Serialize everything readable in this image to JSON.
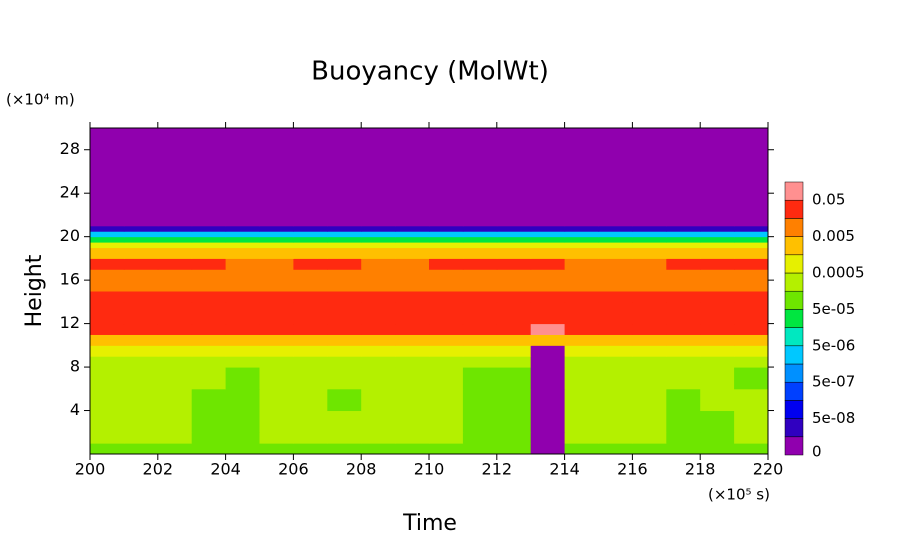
{
  "chart_data": {
    "type": "heatmap",
    "title": "Buoyancy (MolWt)",
    "x_label": "Time",
    "y_label": "Height",
    "x_unit": "(×10⁵ s)",
    "y_unit": "(×10⁴ m)",
    "xlim": [
      200,
      220
    ],
    "xticks": [
      200,
      202,
      204,
      206,
      208,
      210,
      212,
      214,
      216,
      218,
      220
    ],
    "ylim": [
      0,
      30
    ],
    "yticks": [
      4,
      8,
      12,
      16,
      20,
      24,
      28
    ],
    "x": [
      200,
      201,
      202,
      203,
      204,
      205,
      206,
      207,
      208,
      209,
      210,
      211,
      212,
      213,
      214,
      215,
      216,
      217,
      218,
      219,
      220
    ],
    "y": [
      0,
      1,
      2,
      4,
      6,
      8,
      9,
      10,
      11,
      12,
      14,
      15,
      16,
      17,
      18,
      19,
      19.5,
      20,
      20.5,
      21,
      30
    ],
    "z": [
      [
        7e-05,
        7e-05,
        7e-05,
        7e-05,
        7e-05,
        7e-05,
        7e-05,
        7e-05,
        7e-05,
        7e-05,
        7e-05,
        7e-05,
        7e-05,
        0,
        7e-05,
        7e-05,
        7e-05,
        7e-05,
        7e-05,
        7e-05
      ],
      [
        0.0003,
        0.0003,
        0.0003,
        7e-05,
        7e-05,
        0.0003,
        0.0003,
        0.0003,
        0.0003,
        0.0003,
        0.0003,
        7e-05,
        7e-05,
        0,
        0.0003,
        0.0003,
        0.0003,
        7e-05,
        7e-05,
        0.0003
      ],
      [
        0.0003,
        0.0003,
        0.0003,
        7e-05,
        7e-05,
        0.0003,
        0.0003,
        0.0003,
        0.0003,
        0.0003,
        0.0003,
        7e-05,
        7e-05,
        0,
        0.0003,
        0.0003,
        0.0003,
        7e-05,
        7e-05,
        0.0003
      ],
      [
        0.0003,
        0.0003,
        0.0003,
        7e-05,
        7e-05,
        0.0003,
        0.0003,
        7e-05,
        0.0003,
        0.0003,
        0.0003,
        7e-05,
        7e-05,
        0,
        0.0003,
        0.0003,
        0.0003,
        7e-05,
        0.0003,
        0.0003
      ],
      [
        0.0003,
        0.0003,
        0.0003,
        0.0003,
        7e-05,
        0.0003,
        0.0003,
        0.0003,
        0.0003,
        0.0003,
        0.0003,
        7e-05,
        7e-05,
        0,
        0.0003,
        0.0003,
        0.0003,
        0.0003,
        0.0003,
        7e-05
      ],
      [
        0.0003,
        0.0003,
        0.0003,
        0.0003,
        0.0003,
        0.0003,
        0.0003,
        0.0003,
        0.0003,
        0.0003,
        0.0003,
        0.0003,
        0.0003,
        0,
        0.0003,
        0.0003,
        0.0003,
        0.0003,
        0.0003,
        0.0003
      ],
      [
        0.0007,
        0.0007,
        0.0007,
        0.0007,
        0.0007,
        0.0007,
        0.0007,
        0.0007,
        0.0007,
        0.0007,
        0.0007,
        0.0007,
        0.0007,
        0,
        0.0007,
        0.0007,
        0.0007,
        0.0007,
        0.0007,
        0.0007
      ],
      [
        0.002,
        0.002,
        0.002,
        0.002,
        0.002,
        0.002,
        0.002,
        0.002,
        0.002,
        0.002,
        0.002,
        0.002,
        0.002,
        0.002,
        0.002,
        0.002,
        0.002,
        0.002,
        0.002,
        0.002
      ],
      [
        0.02,
        0.02,
        0.02,
        0.02,
        0.02,
        0.02,
        0.02,
        0.02,
        0.02,
        0.02,
        0.02,
        0.02,
        0.02,
        0.07,
        0.02,
        0.02,
        0.02,
        0.02,
        0.02,
        0.02
      ],
      [
        0.02,
        0.02,
        0.02,
        0.02,
        0.02,
        0.02,
        0.02,
        0.02,
        0.02,
        0.02,
        0.02,
        0.02,
        0.02,
        0.02,
        0.02,
        0.02,
        0.02,
        0.02,
        0.02,
        0.02
      ],
      [
        0.02,
        0.02,
        0.02,
        0.02,
        0.02,
        0.02,
        0.02,
        0.02,
        0.02,
        0.02,
        0.02,
        0.02,
        0.02,
        0.02,
        0.02,
        0.02,
        0.02,
        0.02,
        0.02,
        0.02
      ],
      [
        0.007,
        0.007,
        0.007,
        0.007,
        0.007,
        0.007,
        0.007,
        0.007,
        0.007,
        0.007,
        0.007,
        0.007,
        0.007,
        0.007,
        0.007,
        0.007,
        0.007,
        0.007,
        0.007,
        0.007
      ],
      [
        0.007,
        0.007,
        0.007,
        0.007,
        0.007,
        0.007,
        0.007,
        0.007,
        0.007,
        0.007,
        0.007,
        0.007,
        0.007,
        0.007,
        0.007,
        0.007,
        0.007,
        0.007,
        0.007,
        0.007
      ],
      [
        0.02,
        0.02,
        0.02,
        0.02,
        0.007,
        0.007,
        0.02,
        0.02,
        0.007,
        0.007,
        0.02,
        0.02,
        0.02,
        0.02,
        0.007,
        0.007,
        0.007,
        0.02,
        0.02,
        0.02
      ],
      [
        0.002,
        0.002,
        0.002,
        0.002,
        0.002,
        0.002,
        0.002,
        0.002,
        0.002,
        0.002,
        0.002,
        0.002,
        0.002,
        0.002,
        0.002,
        0.002,
        0.002,
        0.002,
        0.002,
        0.002
      ],
      [
        0.0007,
        0.0007,
        0.0007,
        0.0007,
        0.0007,
        0.0007,
        0.0007,
        0.0007,
        0.0007,
        0.0007,
        0.0007,
        0.0007,
        0.0007,
        0.0007,
        0.0007,
        0.0007,
        0.0007,
        0.0007,
        0.0007,
        0.0007
      ],
      [
        3e-05,
        3e-05,
        3e-05,
        3e-05,
        3e-05,
        3e-05,
        3e-05,
        3e-05,
        3e-05,
        3e-05,
        3e-05,
        3e-05,
        3e-05,
        3e-05,
        3e-05,
        3e-05,
        3e-05,
        3e-05,
        3e-05,
        3e-05
      ],
      [
        2e-06,
        2e-06,
        2e-06,
        2e-06,
        2e-06,
        2e-06,
        2e-06,
        2e-06,
        2e-06,
        2e-06,
        2e-06,
        2e-06,
        2e-06,
        2e-06,
        2e-06,
        2e-06,
        2e-06,
        2e-06,
        2e-06,
        2e-06
      ],
      [
        3e-08,
        3e-08,
        3e-08,
        3e-08,
        3e-08,
        3e-08,
        3e-08,
        3e-08,
        3e-08,
        3e-08,
        3e-08,
        3e-08,
        3e-08,
        3e-08,
        3e-08,
        3e-08,
        3e-08,
        3e-08,
        3e-08,
        3e-08
      ],
      [
        0,
        0,
        0,
        0,
        0,
        0,
        0,
        0,
        0,
        0,
        0,
        0,
        0,
        0,
        0,
        0,
        0,
        0,
        0,
        0
      ]
    ],
    "colorbar": {
      "levels": [
        0,
        1e-08,
        5e-08,
        1e-07,
        5e-07,
        1e-06,
        5e-06,
        1e-05,
        5e-05,
        0.0001,
        0.0005,
        0.001,
        0.005,
        0.01,
        0.05,
        0.1
      ],
      "colors": [
        "#9000ae",
        "#3000c0",
        "#0000f0",
        "#0040ff",
        "#0090ff",
        "#00c8ff",
        "#00e8c0",
        "#00e640",
        "#6ee600",
        "#b4f000",
        "#e6f000",
        "#ffc000",
        "#ff8000",
        "#ff2a10",
        "#ff9090"
      ],
      "ticks": [
        0,
        {
          "value": 5e-08,
          "label": "5e-08"
        },
        {
          "value": 5e-07,
          "label": "5e-07"
        },
        {
          "value": 5e-06,
          "label": "5e-06"
        },
        {
          "value": 5e-05,
          "label": "5e-05"
        },
        0.0005,
        0.005,
        0.05
      ]
    }
  }
}
